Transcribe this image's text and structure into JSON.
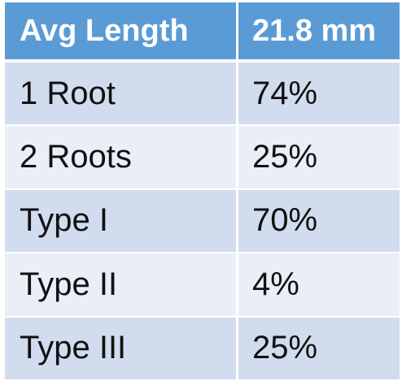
{
  "table": {
    "header": [
      "Avg Length",
      "21.8 mm"
    ],
    "rows": [
      [
        "1 Root",
        "74%"
      ],
      [
        "2 Roots",
        "25%"
      ],
      [
        "Type I",
        "70%"
      ],
      [
        "Type II",
        "4%"
      ],
      [
        "Type III",
        "25%"
      ]
    ]
  },
  "colors": {
    "header_bg": "#5b9bd5",
    "header_text": "#ffffff",
    "row_dark": "#d1dcee",
    "row_light": "#e9eef7"
  }
}
